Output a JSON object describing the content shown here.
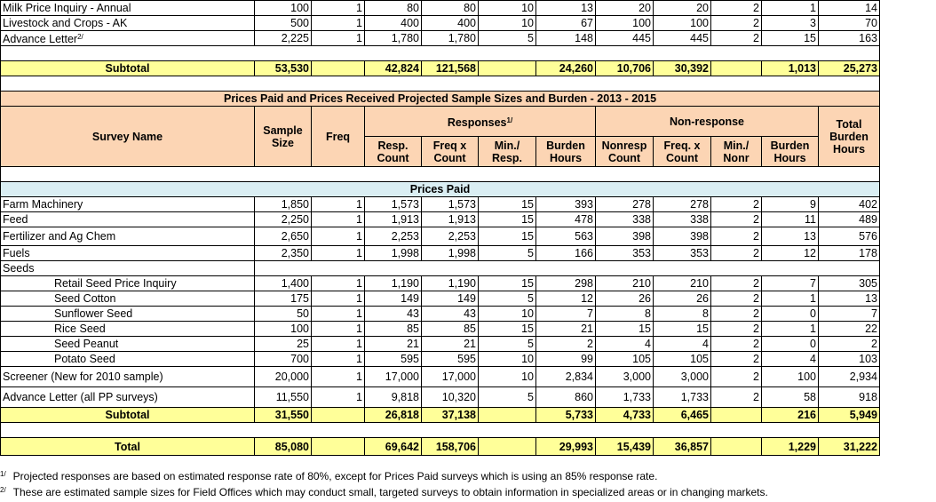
{
  "top_rows": [
    {
      "name": "Milk Price Inquiry - Annual",
      "values": [
        "100",
        "1",
        "80",
        "80",
        "10",
        "13",
        "20",
        "20",
        "2",
        "1",
        "14"
      ]
    },
    {
      "name": "Livestock and Crops - AK",
      "values": [
        "500",
        "1",
        "400",
        "400",
        "10",
        "67",
        "100",
        "100",
        "2",
        "3",
        "70"
      ]
    },
    {
      "name": "Advance Letter",
      "note": "2/",
      "values": [
        "2,225",
        "1",
        "1,780",
        "1,780",
        "5",
        "148",
        "445",
        "445",
        "2",
        "15",
        "163"
      ]
    }
  ],
  "top_subtotal": {
    "label": "Subtotal",
    "values": [
      "53,530",
      null,
      "42,824",
      "121,568",
      null,
      "24,260",
      "10,706",
      "30,392",
      null,
      "1,013",
      "25,273"
    ]
  },
  "section_title": "Prices Paid and Prices Received Projected Sample Sizes and Burden - 2013 - 2015",
  "header": {
    "survey_name": "Survey Name",
    "sample_size": [
      "Sample",
      "Size"
    ],
    "freq": "Freq",
    "responses": {
      "label": "Responses",
      "note": "1/"
    },
    "non_response": "Non-response",
    "total": [
      "Total",
      "Burden",
      "Hours"
    ],
    "sub": [
      [
        "Resp.",
        "Count"
      ],
      [
        "Freq x",
        "Count"
      ],
      [
        "Min./",
        "Resp."
      ],
      [
        "Burden",
        "Hours"
      ],
      [
        "Nonresp",
        "Count"
      ],
      [
        "Freq. x",
        "Count"
      ],
      [
        "Min./",
        "Nonr"
      ],
      [
        "Burden",
        "Hours"
      ]
    ]
  },
  "section_label": "Prices Paid",
  "rows": [
    {
      "name": "Farm Machinery",
      "values": [
        "1,850",
        "1",
        "1,573",
        "1,573",
        "15",
        "393",
        "278",
        "278",
        "2",
        "9",
        "402"
      ]
    },
    {
      "name": "Feed",
      "values": [
        "2,250",
        "1",
        "1,913",
        "1,913",
        "15",
        "478",
        "338",
        "338",
        "2",
        "11",
        "489"
      ]
    },
    {
      "name": "Fertilizer and Ag Chem",
      "values": [
        "2,650",
        "1",
        "2,253",
        "2,253",
        "15",
        "563",
        "398",
        "398",
        "2",
        "13",
        "576"
      ]
    },
    {
      "name": "Fuels",
      "values": [
        "2,350",
        "1",
        "1,998",
        "1,998",
        "5",
        "166",
        "353",
        "353",
        "2",
        "12",
        "178"
      ]
    },
    {
      "name": "Seeds",
      "items": [
        {
          "name": "Retail Seed Price Inquiry",
          "values": [
            "1,400",
            "1",
            "1,190",
            "1,190",
            "15",
            "298",
            "210",
            "210",
            "2",
            "7",
            "305"
          ]
        },
        {
          "name": "Seed Cotton",
          "values": [
            "175",
            "1",
            "149",
            "149",
            "5",
            "12",
            "26",
            "26",
            "2",
            "1",
            "13"
          ]
        },
        {
          "name": "Sunflower Seed",
          "values": [
            "50",
            "1",
            "43",
            "43",
            "10",
            "7",
            "8",
            "8",
            "2",
            "0",
            "7"
          ]
        },
        {
          "name": "Rice Seed",
          "values": [
            "100",
            "1",
            "85",
            "85",
            "15",
            "21",
            "15",
            "15",
            "2",
            "1",
            "22"
          ]
        },
        {
          "name": "Seed Peanut",
          "values": [
            "25",
            "1",
            "21",
            "21",
            "5",
            "2",
            "4",
            "4",
            "2",
            "0",
            "2"
          ]
        },
        {
          "name": "Potato Seed",
          "values": [
            "700",
            "1",
            "595",
            "595",
            "10",
            "99",
            "105",
            "105",
            "2",
            "4",
            "103"
          ]
        }
      ]
    },
    {
      "name": "Screener (New for 2010 sample)",
      "values": [
        "20,000",
        "1",
        "17,000",
        "17,000",
        "10",
        "2,834",
        "3,000",
        "3,000",
        "2",
        "100",
        "2,934"
      ]
    },
    {
      "name": "Advance Letter (all PP surveys)",
      "values": [
        "11,550",
        "1",
        "9,818",
        "10,320",
        "5",
        "860",
        "1,733",
        "1,733",
        "2",
        "58",
        "918"
      ]
    }
  ],
  "subtotal": {
    "label": "Subtotal",
    "values": [
      "31,550",
      null,
      "26,818",
      "37,138",
      null,
      "5,733",
      "4,733",
      "6,465",
      null,
      "216",
      "5,949"
    ]
  },
  "total": {
    "label": "Total",
    "values": [
      "85,080",
      null,
      "69,642",
      "158,706",
      null,
      "29,993",
      "15,439",
      "36,857",
      null,
      "1,229",
      "31,222"
    ]
  },
  "footnotes": [
    {
      "marker": "1/",
      "text": "Projected responses are based on estimated response rate of 80%, except for Prices Paid surveys which is using an 85% response rate."
    },
    {
      "marker": "2/",
      "text": "These are estimated sample sizes for Field Offices which may conduct small, targeted surveys to obtain information in specialized areas or in changing markets."
    }
  ]
}
